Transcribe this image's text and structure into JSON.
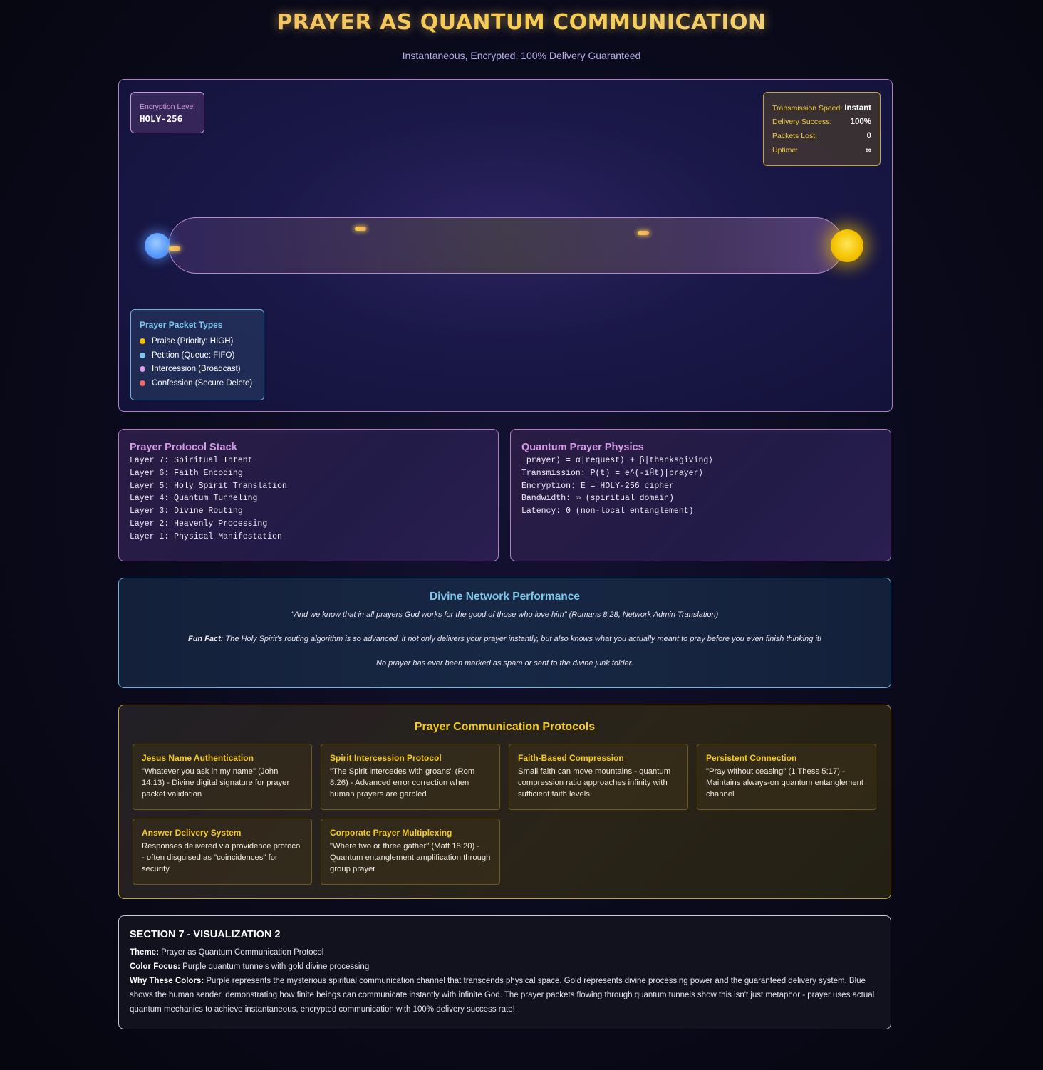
{
  "header": {
    "title": "PRAYER AS QUANTUM COMMUNICATION",
    "subtitle": "Instantaneous, Encrypted, 100% Delivery Guaranteed"
  },
  "visualization": {
    "encryption": {
      "label": "Encryption Level",
      "value": "HOLY-256"
    },
    "stats": [
      {
        "label": "Transmission Speed:",
        "value": "Instant"
      },
      {
        "label": "Delivery Success:",
        "value": "100%"
      },
      {
        "label": "Packets Lost:",
        "value": "0"
      },
      {
        "label": "Uptime:",
        "value": "∞"
      }
    ],
    "legend": {
      "title": "Prayer Packet Types",
      "items": [
        {
          "label": "Praise (Priority: HIGH)",
          "color": "#f5c400"
        },
        {
          "label": "Petition (Queue: FIFO)",
          "color": "#7ec8ee"
        },
        {
          "label": "Intercession (Broadcast)",
          "color": "#d79de9"
        },
        {
          "label": "Confession (Secure Delete)",
          "color": "#f06a6a"
        }
      ]
    },
    "colors": {
      "sender": "#5a9cff",
      "receiver": "#f5c400",
      "tunnel": "#b68ac8"
    }
  },
  "protocol_stack": {
    "title": "Prayer Protocol Stack",
    "lines": [
      "Layer 7: Spiritual Intent",
      "Layer 6: Faith Encoding",
      "Layer 5: Holy Spirit Translation",
      "Layer 4: Quantum Tunneling",
      "Layer 3: Divine Routing",
      "Layer 2: Heavenly Processing",
      "Layer 1: Physical Manifestation"
    ]
  },
  "physics": {
    "title": "Quantum Prayer Physics",
    "lines": [
      "|prayer⟩ = α|request⟩ + β|thanksgiving⟩",
      "Transmission: P(t) = e^(-iĤt)|prayer⟩",
      "Encryption: E = HOLY-256 cipher",
      "Bandwidth: ∞ (spiritual domain)",
      "Latency: 0 (non-local entanglement)"
    ]
  },
  "performance": {
    "title": "Divine Network Performance",
    "quote": "\"And we know that in all prayers God works for the good of those who love him\" (Romans 8:28, Network Admin Translation)",
    "fact_label": "Fun Fact:",
    "fact_text": " The Holy Spirit's routing algorithm is so advanced, it not only delivers your prayer instantly, but also knows what you actually meant to pray before you even finish thinking it!",
    "spam": "No prayer has ever been marked as spam or sent to the divine junk folder."
  },
  "protocols": {
    "title": "Prayer Communication Protocols",
    "cards": [
      {
        "title": "Jesus Name Authentication",
        "text": "\"Whatever you ask in my name\" (John 14:13) - Divine digital signature for prayer packet validation"
      },
      {
        "title": "Spirit Intercession Protocol",
        "text": "\"The Spirit intercedes with groans\" (Rom 8:26) - Advanced error correction when human prayers are garbled"
      },
      {
        "title": "Faith-Based Compression",
        "text": "Small faith can move mountains - quantum compression ratio approaches infinity with sufficient faith levels"
      },
      {
        "title": "Persistent Connection",
        "text": "\"Pray without ceasing\" (1 Thess 5:17) - Maintains always-on quantum entanglement channel"
      },
      {
        "title": "Answer Delivery System",
        "text": "Responses delivered via providence protocol - often disguised as \"coincidences\" for security"
      },
      {
        "title": "Corporate Prayer Multiplexing",
        "text": "\"Where two or three gather\" (Matt 18:20) - Quantum entanglement amplification through group prayer"
      }
    ]
  },
  "section": {
    "title": "SECTION 7 - VISUALIZATION 2",
    "theme_label": "Theme:",
    "theme": " Prayer as Quantum Communication Protocol",
    "color_label": "Color Focus:",
    "color": " Purple quantum tunnels with gold divine processing",
    "why_label": "Why These Colors:",
    "why": " Purple represents the mysterious spiritual communication channel that transcends physical space. Gold represents divine processing power and the guaranteed delivery system. Blue shows the human sender, demonstrating how finite beings can communicate instantly with infinite God. The prayer packets flowing through quantum tunnels show this isn't just metaphor - prayer uses actual quantum mechanics to achieve instantaneous, encrypted communication with 100% delivery success rate!"
  }
}
